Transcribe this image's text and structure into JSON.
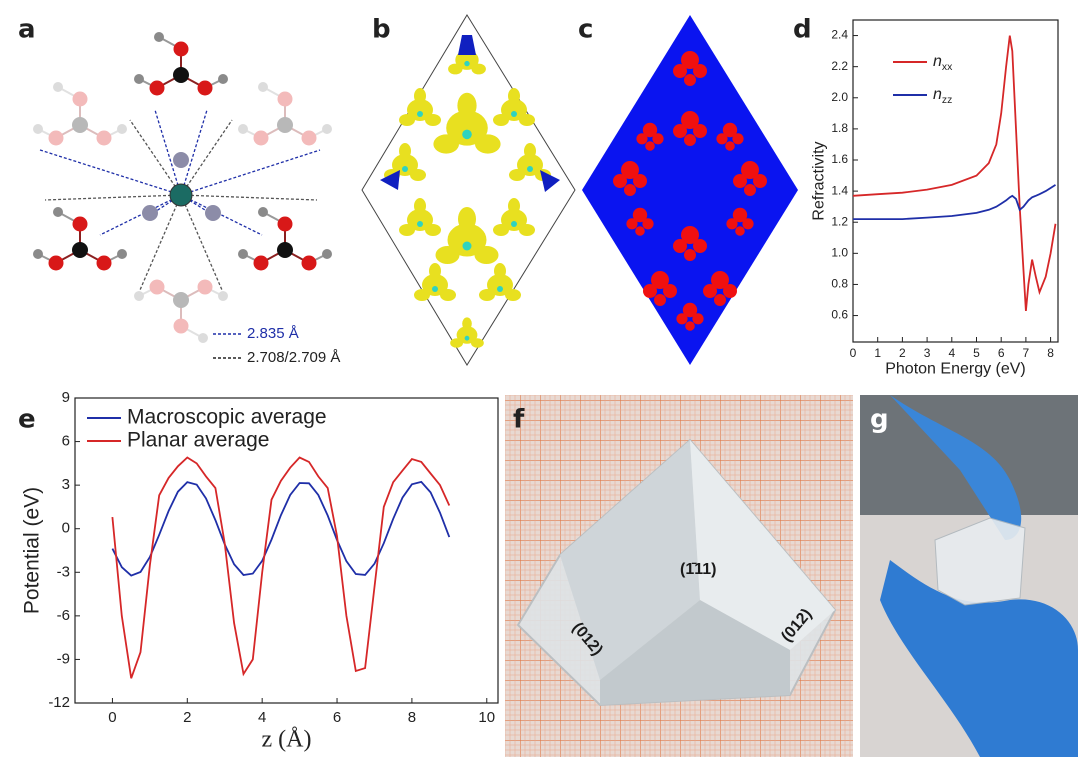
{
  "panel_labels": [
    "a",
    "b",
    "c",
    "d",
    "e",
    "f",
    "g"
  ],
  "annotations": {
    "bond_blue": "2.835 Å",
    "bond_black": "2.708/2.709 Å",
    "face_top": "(1̄11)",
    "face_left": "(012)",
    "face_right": "(012)"
  },
  "chart_data": [
    {
      "type": "line",
      "xlabel": "Photon Energy (eV)",
      "ylabel": "Refractivity",
      "x": [
        0,
        1,
        2,
        3,
        4,
        5,
        5.5,
        5.8,
        6.0,
        6.2,
        6.35,
        6.45,
        6.6,
        6.75,
        6.9,
        7.0,
        7.1,
        7.25,
        7.4,
        7.55,
        7.8,
        8.0,
        8.2
      ],
      "series": [
        {
          "name": "nxx",
          "color": "#d62728",
          "values": [
            1.37,
            1.38,
            1.39,
            1.41,
            1.44,
            1.5,
            1.58,
            1.7,
            1.9,
            2.2,
            2.4,
            2.3,
            1.8,
            1.3,
            0.9,
            0.63,
            0.8,
            0.96,
            0.85,
            0.75,
            0.85,
            1.0,
            1.19
          ]
        },
        {
          "name": "nzz",
          "color": "#1f2fa8",
          "values": [
            1.22,
            1.22,
            1.22,
            1.23,
            1.24,
            1.26,
            1.28,
            1.3,
            1.32,
            1.34,
            1.36,
            1.37,
            1.35,
            1.28,
            1.3,
            1.32,
            1.34,
            1.36,
            1.37,
            1.38,
            1.4,
            1.42,
            1.44
          ]
        }
      ],
      "xlim": [
        0,
        8.3
      ],
      "xticks": [
        0,
        1,
        2,
        3,
        4,
        5,
        6,
        7,
        8
      ],
      "ylim": [
        0.43,
        2.5
      ],
      "yticks": [
        0.6,
        0.8,
        {
          "value": 1.0,
          "label": "1.0"
        },
        1.2,
        1.4,
        1.6,
        1.8,
        {
          "value": 2.0,
          "label": "2.0"
        },
        2.2,
        2.4
      ],
      "legend": "upper left"
    },
    {
      "type": "line",
      "xlabel": "z (Å)",
      "ylabel": "Potential (eV)",
      "x": [
        0,
        0.25,
        0.5,
        0.75,
        1.0,
        1.25,
        1.5,
        1.75,
        2.0,
        2.25,
        2.5,
        2.75,
        3.0,
        3.25,
        3.5,
        3.75,
        4.0,
        4.25,
        4.5,
        4.75,
        5.0,
        5.25,
        5.5,
        5.75,
        6.0,
        6.25,
        6.5,
        6.75,
        7.0,
        7.25,
        7.5,
        7.75,
        8.0,
        8.25,
        8.5,
        8.75,
        9.0
      ],
      "series": [
        {
          "name": "Macroscopic average",
          "color": "#1f2fa8",
          "values": [
            -1.37,
            -2.65,
            -3.23,
            -2.98,
            -1.95,
            -0.42,
            1.22,
            2.55,
            3.21,
            3.04,
            2.09,
            0.59,
            -1.07,
            -2.44,
            -3.19,
            -3.09,
            -2.21,
            -0.75,
            0.93,
            2.32,
            3.15,
            3.13,
            2.32,
            0.91,
            -0.78,
            -2.24,
            -3.12,
            -3.18,
            -2.41,
            -1.0,
            0.68,
            2.14,
            3.06,
            3.22,
            2.5,
            1.1,
            -0.58
          ]
        },
        {
          "name": "Planar average",
          "color": "#d62728",
          "values": [
            0.8,
            -6,
            -10.3,
            -8.5,
            -2.5,
            2.3,
            3.5,
            4.3,
            4.9,
            4.5,
            3.6,
            2.8,
            -1,
            -6.5,
            -10,
            -9,
            -3,
            2,
            3.3,
            4.2,
            4.9,
            4.6,
            3.6,
            2.8,
            -0.5,
            -6,
            -9.8,
            -9.6,
            -4,
            1.5,
            3.2,
            4.0,
            4.8,
            4.6,
            3.8,
            3.0,
            1.6
          ]
        }
      ],
      "xlim": [
        -1,
        10.3
      ],
      "xticks": [
        0,
        2,
        4,
        6,
        8,
        10
      ],
      "ylim": [
        -12,
        9
      ],
      "yticks": [
        -12,
        -9,
        -6,
        -3,
        0,
        3,
        6,
        9
      ],
      "legend": "upper left"
    }
  ]
}
